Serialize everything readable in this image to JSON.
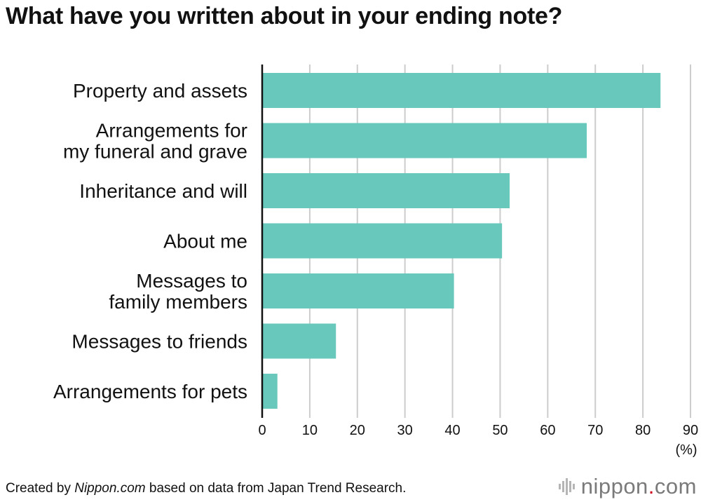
{
  "chart_data": {
    "type": "bar",
    "orientation": "horizontal",
    "title": "What have you written about in your ending note?",
    "categories": [
      [
        "Property and assets"
      ],
      [
        "Arrangements for",
        "my funeral and grave"
      ],
      [
        "Inheritance and will"
      ],
      [
        "About me"
      ],
      [
        "Messages to",
        "family members"
      ],
      [
        "Messages to friends"
      ],
      [
        "Arrangements for pets"
      ]
    ],
    "values": [
      83.7,
      68.2,
      52.0,
      50.4,
      40.3,
      15.5,
      3.2
    ],
    "xlim": [
      0,
      90
    ],
    "xticks": [
      "0",
      "10",
      "20",
      "30",
      "40",
      "50",
      "60",
      "70",
      "80",
      "90"
    ],
    "xunit": "(%)",
    "grid": true,
    "bar_color": "#69c8bc",
    "grid_color": "#cccccc"
  },
  "footer": {
    "prefix": "Created by ",
    "source": "Nippon.com",
    "suffix": " based on data from Japan Trend Research."
  },
  "logo": {
    "name": "nippon",
    "dot": ".",
    "tld": "com",
    "icon": "sound-wave-icon"
  }
}
